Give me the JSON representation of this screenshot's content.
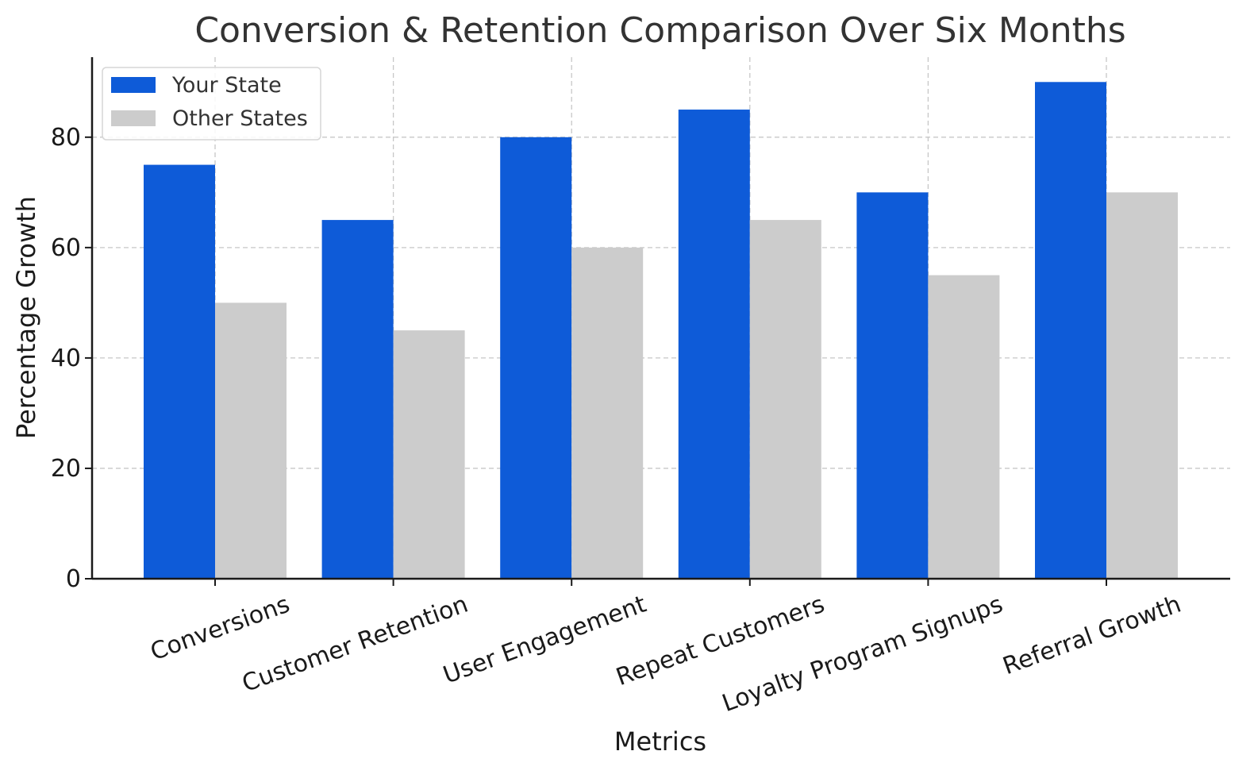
{
  "chart_data": {
    "type": "bar",
    "title": "Conversion & Retention Comparison Over Six Months",
    "xlabel": "Metrics",
    "ylabel": "Percentage Growth",
    "categories": [
      "Conversions",
      "Customer Retention",
      "User Engagement",
      "Repeat Customers",
      "Loyalty Program Signups",
      "Referral Growth"
    ],
    "series": [
      {
        "name": "Your State",
        "values": [
          75,
          65,
          80,
          85,
          70,
          90
        ],
        "color": "#0e5bd8"
      },
      {
        "name": "Other States",
        "values": [
          50,
          45,
          60,
          65,
          55,
          70
        ],
        "color": "#cccccc"
      }
    ],
    "ylim": [
      0,
      94.5
    ],
    "yticks": [
      "0",
      "20",
      "40",
      "60",
      "80"
    ],
    "grid": true,
    "legend_position": "top-left"
  }
}
